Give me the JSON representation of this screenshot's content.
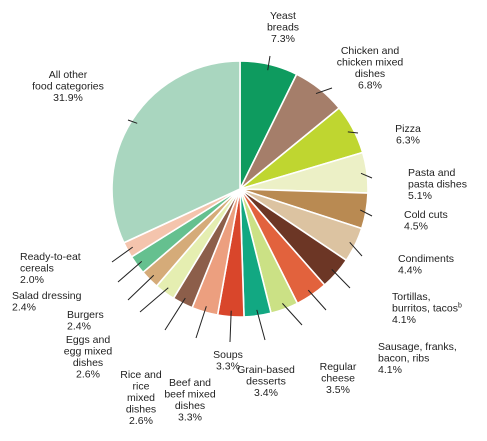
{
  "chart_data": {
    "type": "pie",
    "title": "",
    "start": "12 o'clock",
    "direction": "clockwise",
    "slices": [
      {
        "label": [
          "Yeast",
          "breads"
        ],
        "value": 7.3,
        "value_text": "7.3%",
        "color": "#0e9b5f"
      },
      {
        "label": [
          "Chicken and",
          "chicken mixed",
          "dishes"
        ],
        "value": 6.8,
        "value_text": "6.8%",
        "color": "#a57e6a"
      },
      {
        "label": [
          "Pizza"
        ],
        "value": 6.3,
        "value_text": "6.3%",
        "color": "#bfd630"
      },
      {
        "label": [
          "Pasta and",
          "pasta dishes"
        ],
        "value": 5.1,
        "value_text": "5.1%",
        "color": "#ecf0c6"
      },
      {
        "label": [
          "Cold cuts"
        ],
        "value": 4.5,
        "value_text": "4.5%",
        "color": "#b98a52"
      },
      {
        "label": [
          "Condiments"
        ],
        "value": 4.4,
        "value_text": "4.4%",
        "color": "#dcc3a1"
      },
      {
        "label": [
          "Tortillas,",
          "burritos, tacos"
        ],
        "label_sup": "b",
        "value": 4.1,
        "value_text": "4.1%",
        "color": "#6c3625"
      },
      {
        "label": [
          "Sausage, franks,",
          "bacon, ribs"
        ],
        "value": 4.1,
        "value_text": "4.1%",
        "color": "#e2623d"
      },
      {
        "label": [
          "Regular",
          "cheese"
        ],
        "value": 3.5,
        "value_text": "3.5%",
        "color": "#cbe185"
      },
      {
        "label": [
          "Grain-based",
          "desserts"
        ],
        "value": 3.4,
        "value_text": "3.4%",
        "color": "#12a882"
      },
      {
        "label": [
          "Soups"
        ],
        "value": 3.3,
        "value_text": "3.3%",
        "color": "#d9462b"
      },
      {
        "label": [
          "Beef and",
          "beef mixed",
          "dishes"
        ],
        "value": 3.3,
        "value_text": "3.3%",
        "color": "#ec9f7f"
      },
      {
        "label": [
          "Rice and",
          "rice",
          "mixed",
          "dishes"
        ],
        "value": 2.6,
        "value_text": "2.6%",
        "color": "#8c5e4a"
      },
      {
        "label": [
          "Eggs and",
          "egg mixed",
          "dishes"
        ],
        "value": 2.6,
        "value_text": "2.6%",
        "color": "#e5eeb1"
      },
      {
        "label": [
          "Burgers"
        ],
        "value": 2.4,
        "value_text": "2.4%",
        "color": "#d5ab79"
      },
      {
        "label": [
          "Salad dressing"
        ],
        "value": 2.4,
        "value_text": "2.4%",
        "color": "#65c08f"
      },
      {
        "label": [
          "Ready-to-eat",
          "cereals"
        ],
        "value": 2.0,
        "value_text": "2.0%",
        "color": "#f4c4ad"
      },
      {
        "label": [
          "All other",
          "food categories"
        ],
        "value": 31.9,
        "value_text": "31.9%",
        "color": "#a9d6bf"
      }
    ]
  }
}
